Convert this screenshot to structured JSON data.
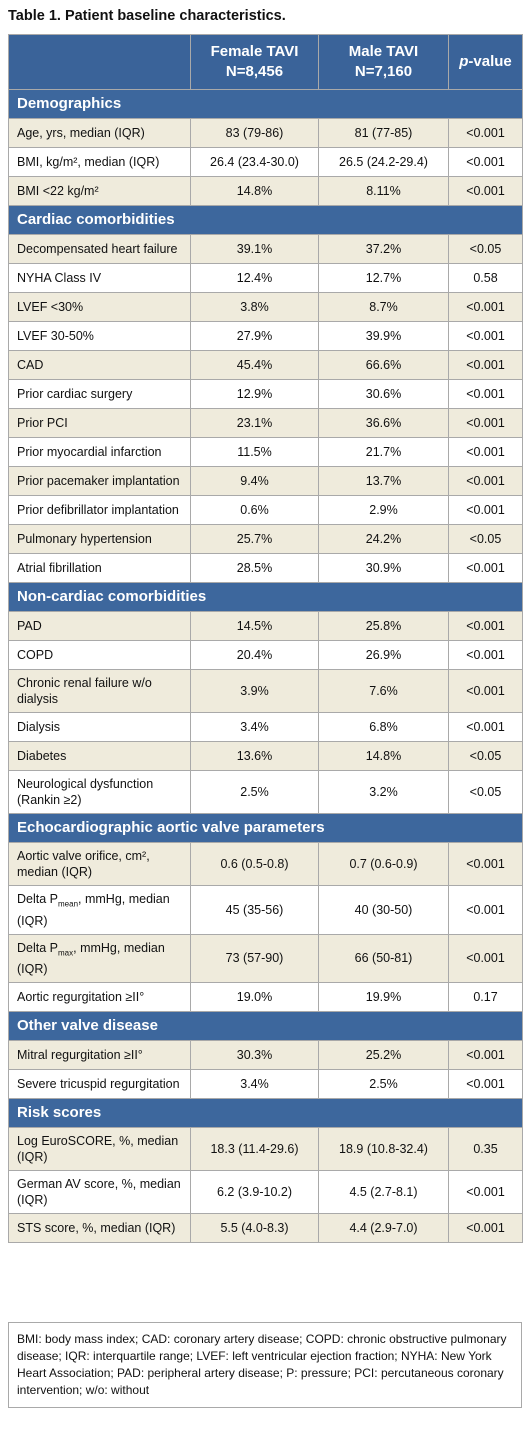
{
  "title": "Table 1. Patient baseline characteristics.",
  "table": {
    "columns": [
      {
        "name": "Female TAVI",
        "n": "N=8,456"
      },
      {
        "name": "Male TAVI",
        "n": "N=7,160"
      },
      {
        "name": "p-value"
      }
    ],
    "sections": [
      {
        "title": "Demographics",
        "rows": [
          {
            "label": "Age, yrs, median (IQR)",
            "values": [
              "83 (79-86)",
              "81 (77-85)",
              "<0.001"
            ]
          },
          {
            "label": "BMI, kg/m², median (IQR)",
            "values": [
              "26.4 (23.4-30.0)",
              "26.5 (24.2-29.4)",
              "<0.001"
            ]
          },
          {
            "label": "BMI <22 kg/m²",
            "values": [
              "14.8%",
              "8.11%",
              "<0.001"
            ]
          }
        ]
      },
      {
        "title": "Cardiac comorbidities",
        "rows": [
          {
            "label": "Decompensated heart failure",
            "values": [
              "39.1%",
              "37.2%",
              "<0.05"
            ]
          },
          {
            "label": "NYHA Class IV",
            "values": [
              "12.4%",
              "12.7%",
              "0.58"
            ]
          },
          {
            "label": "LVEF <30%",
            "values": [
              "3.8%",
              "8.7%",
              "<0.001"
            ]
          },
          {
            "label": "LVEF 30-50%",
            "values": [
              "27.9%",
              "39.9%",
              "<0.001"
            ]
          },
          {
            "label": "CAD",
            "values": [
              "45.4%",
              "66.6%",
              "<0.001"
            ]
          },
          {
            "label": "Prior cardiac surgery",
            "values": [
              "12.9%",
              "30.6%",
              "<0.001"
            ]
          },
          {
            "label": "Prior PCI",
            "values": [
              "23.1%",
              "36.6%",
              "<0.001"
            ]
          },
          {
            "label": "Prior myocardial infarction",
            "values": [
              "11.5%",
              "21.7%",
              "<0.001"
            ]
          },
          {
            "label": "Prior pacemaker implantation",
            "values": [
              "9.4%",
              "13.7%",
              "<0.001"
            ]
          },
          {
            "label": "Prior defibrillator implantation",
            "values": [
              "0.6%",
              "2.9%",
              "<0.001"
            ]
          },
          {
            "label": "Pulmonary hypertension",
            "values": [
              "25.7%",
              "24.2%",
              "<0.05"
            ]
          },
          {
            "label": "Atrial fibrillation",
            "values": [
              "28.5%",
              "30.9%",
              "<0.001"
            ]
          }
        ]
      },
      {
        "title": "Non-cardiac comorbidities",
        "rows": [
          {
            "label": "PAD",
            "values": [
              "14.5%",
              "25.8%",
              "<0.001"
            ]
          },
          {
            "label": "COPD",
            "values": [
              "20.4%",
              "26.9%",
              "<0.001"
            ]
          },
          {
            "label": "Chronic renal failure w/o dialysis",
            "values": [
              "3.9%",
              "7.6%",
              "<0.001"
            ]
          },
          {
            "label": "Dialysis",
            "values": [
              "3.4%",
              "6.8%",
              "<0.001"
            ]
          },
          {
            "label": "Diabetes",
            "values": [
              "13.6%",
              "14.8%",
              "<0.05"
            ]
          },
          {
            "label": "Neurological dysfunction (Rankin ≥2)",
            "values": [
              "2.5%",
              "3.2%",
              "<0.05"
            ]
          }
        ]
      },
      {
        "title": "Echocardiographic aortic valve parameters",
        "rows": [
          {
            "label": "Aortic valve orifice, cm², median (IQR)",
            "values": [
              "0.6 (0.5-0.8)",
              "0.7 (0.6-0.9)",
              "<0.001"
            ]
          },
          {
            "label": "Delta P",
            "label_sub": "mean",
            "label_rest": ", mmHg, median (IQR)",
            "values": [
              "45 (35-56)",
              "40 (30-50)",
              "<0.001"
            ]
          },
          {
            "label": "Delta P",
            "label_sub": "max",
            "label_rest": ", mmHg, median (IQR)",
            "values": [
              "73 (57-90)",
              "66 (50-81)",
              "<0.001"
            ]
          },
          {
            "label": "Aortic regurgitation ≥II°",
            "values": [
              "19.0%",
              "19.9%",
              "0.17"
            ]
          }
        ]
      },
      {
        "title": "Other valve disease",
        "rows": [
          {
            "label": "Mitral regurgitation ≥II°",
            "values": [
              "30.3%",
              "25.2%",
              "<0.001"
            ]
          },
          {
            "label": "Severe tricuspid regurgitation",
            "values": [
              "3.4%",
              "2.5%",
              "<0.001"
            ]
          }
        ]
      },
      {
        "title": "Risk scores",
        "rows": [
          {
            "label": "Log EuroSCORE, %, median (IQR)",
            "values": [
              "18.3 (11.4-29.6)",
              "18.9 (10.8-32.4)",
              "0.35"
            ]
          },
          {
            "label": "German AV score, %, median (IQR)",
            "values": [
              "6.2 (3.9-10.2)",
              "4.5 (2.7-8.1)",
              "<0.001"
            ]
          },
          {
            "label": "STS score, %, median (IQR)",
            "values": [
              "5.5 (4.0-8.3)",
              "4.4 (2.9-7.0)",
              "<0.001"
            ]
          }
        ]
      }
    ]
  },
  "footnote": "BMI: body mass index; CAD: coronary artery disease; COPD: chronic obstructive pulmonary disease; IQR: interquartile range; LVEF: left ventricular ejection fraction; NYHA: New York Heart Association; PAD: peripheral artery disease; P: pressure; PCI: percutaneous coronary intervention; w/o: without"
}
